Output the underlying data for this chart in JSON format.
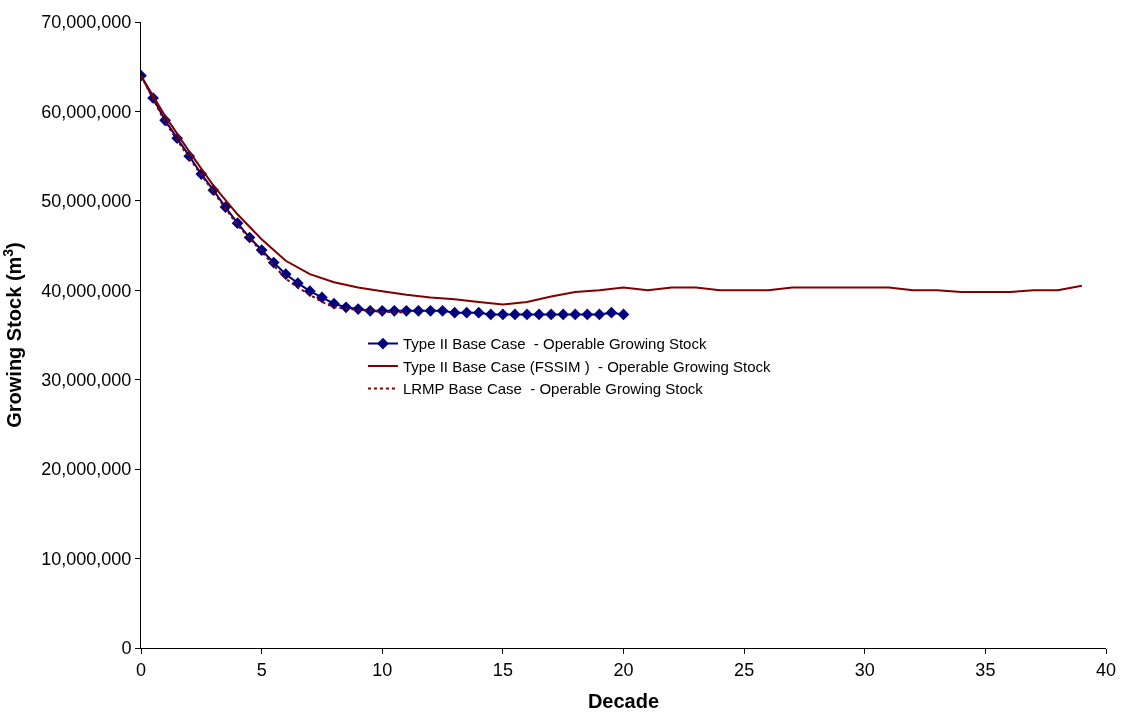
{
  "chart_data": {
    "type": "line",
    "xlabel": "Decade",
    "ylabel": "Growing Stock (m$^{3}$)",
    "xlim": [
      0,
      40
    ],
    "xticks": [
      0,
      5,
      10,
      15,
      20,
      25,
      30,
      35,
      40
    ],
    "ylim": [
      0,
      70000000
    ],
    "yticks": [
      {
        "value": 0,
        "label": "0"
      },
      {
        "value": 10000000,
        "label": "10,000,000"
      },
      {
        "value": 20000000,
        "label": "20,000,000"
      },
      {
        "value": 30000000,
        "label": "30,000,000"
      },
      {
        "value": 40000000,
        "label": "40,000,000"
      },
      {
        "value": 50000000,
        "label": "50,000,000"
      },
      {
        "value": 60000000,
        "label": "60,000,000"
      },
      {
        "value": 70000000,
        "label": "70,000,000"
      }
    ],
    "legend": "center",
    "series": [
      {
        "name": "Type II Base Case  - Operable Growing Stock",
        "color": "#000080",
        "marker": "diamond",
        "line_style": "solid",
        "x": [
          0,
          0.5,
          1,
          1.5,
          2,
          2.5,
          3,
          3.5,
          4,
          4.5,
          5,
          5.5,
          6,
          6.5,
          7,
          7.5,
          8,
          8.5,
          9,
          9.5,
          10,
          10.5,
          11,
          11.5,
          12,
          12.5,
          13,
          13.5,
          14,
          14.5,
          15,
          15.5,
          16,
          16.5,
          17,
          17.5,
          18,
          18.5,
          19,
          19.5,
          20
        ],
        "values": [
          64000000,
          61500000,
          59000000,
          57000000,
          55000000,
          53000000,
          51200000,
          49300000,
          47500000,
          45900000,
          44500000,
          43100000,
          41800000,
          40800000,
          39900000,
          39200000,
          38500000,
          38100000,
          37900000,
          37700000,
          37700000,
          37700000,
          37700000,
          37700000,
          37700000,
          37700000,
          37500000,
          37500000,
          37500000,
          37300000,
          37300000,
          37300000,
          37300000,
          37300000,
          37300000,
          37300000,
          37300000,
          37300000,
          37300000,
          37500000,
          37300000
        ]
      },
      {
        "name": "Type II Base Case (FSSIM )  - Operable Growing Stock",
        "color": "#800000",
        "marker": "none",
        "line_style": "solid",
        "x": [
          0,
          1,
          2,
          3,
          4,
          5,
          6,
          7,
          8,
          9,
          10,
          11,
          12,
          13,
          14,
          15,
          16,
          17,
          18,
          19,
          20,
          21,
          22,
          23,
          24,
          26,
          27,
          31,
          32,
          33,
          34,
          36,
          37,
          38,
          39
        ],
        "values": [
          64000000,
          59500000,
          55500000,
          51700000,
          48500000,
          45700000,
          43300000,
          41800000,
          40900000,
          40300000,
          39900000,
          39500000,
          39200000,
          39000000,
          38700000,
          38400000,
          38700000,
          39300000,
          39800000,
          40000000,
          40300000,
          40000000,
          40300000,
          40300000,
          40000000,
          40000000,
          40300000,
          40300000,
          40000000,
          40000000,
          39800000,
          39800000,
          40000000,
          40000000,
          40500000
        ]
      },
      {
        "name": "LRMP Base Case  - Operable Growing Stock",
        "color": "#800000",
        "marker": "none",
        "line_style": "dotted",
        "x": [
          0,
          1,
          2,
          3,
          4,
          5,
          6,
          6.5,
          7,
          7.5,
          8,
          9,
          10,
          11
        ],
        "values": [
          64000000,
          58800000,
          54800000,
          51000000,
          47300000,
          44300000,
          41300000,
          40300000,
          39500000,
          38700000,
          38100000,
          37800000,
          37600000,
          37500000
        ]
      }
    ]
  }
}
